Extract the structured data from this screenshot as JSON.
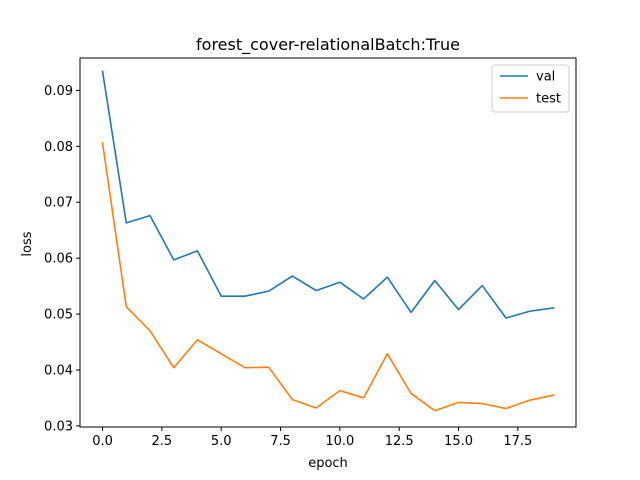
{
  "chart_data": {
    "type": "line",
    "title": "forest_cover-relationalBatch:True",
    "xlabel": "epoch",
    "ylabel": "loss",
    "xlim": [
      -0.95,
      19.95
    ],
    "ylim": [
      0.0298,
      0.0958
    ],
    "xticks": [
      0.0,
      2.5,
      5.0,
      7.5,
      10.0,
      12.5,
      15.0,
      17.5
    ],
    "xtick_labels": [
      "0.0",
      "2.5",
      "5.0",
      "7.5",
      "10.0",
      "12.5",
      "15.0",
      "17.5"
    ],
    "yticks": [
      0.03,
      0.04,
      0.05,
      0.06,
      0.07,
      0.08,
      0.09
    ],
    "ytick_labels": [
      "0.03",
      "0.04",
      "0.05",
      "0.06",
      "0.07",
      "0.08",
      "0.09"
    ],
    "grid": false,
    "legend_position": "top-right",
    "x": [
      0,
      1,
      2,
      3,
      4,
      5,
      6,
      7,
      8,
      9,
      10,
      11,
      12,
      13,
      14,
      15,
      16,
      17,
      18,
      19
    ],
    "series": [
      {
        "name": "val",
        "color": "#1f77b4",
        "values": [
          0.0934,
          0.0663,
          0.0676,
          0.0597,
          0.0613,
          0.0532,
          0.0532,
          0.0541,
          0.0568,
          0.0542,
          0.0557,
          0.0527,
          0.0566,
          0.0503,
          0.056,
          0.0508,
          0.0551,
          0.0493,
          0.0505,
          0.0511
        ]
      },
      {
        "name": "test",
        "color": "#ff7f0e",
        "values": [
          0.0806,
          0.0513,
          0.047,
          0.0404,
          0.0454,
          0.0429,
          0.0404,
          0.0405,
          0.0347,
          0.0332,
          0.0363,
          0.035,
          0.0429,
          0.0358,
          0.0327,
          0.0342,
          0.034,
          0.0331,
          0.0346,
          0.0355
        ]
      }
    ]
  }
}
